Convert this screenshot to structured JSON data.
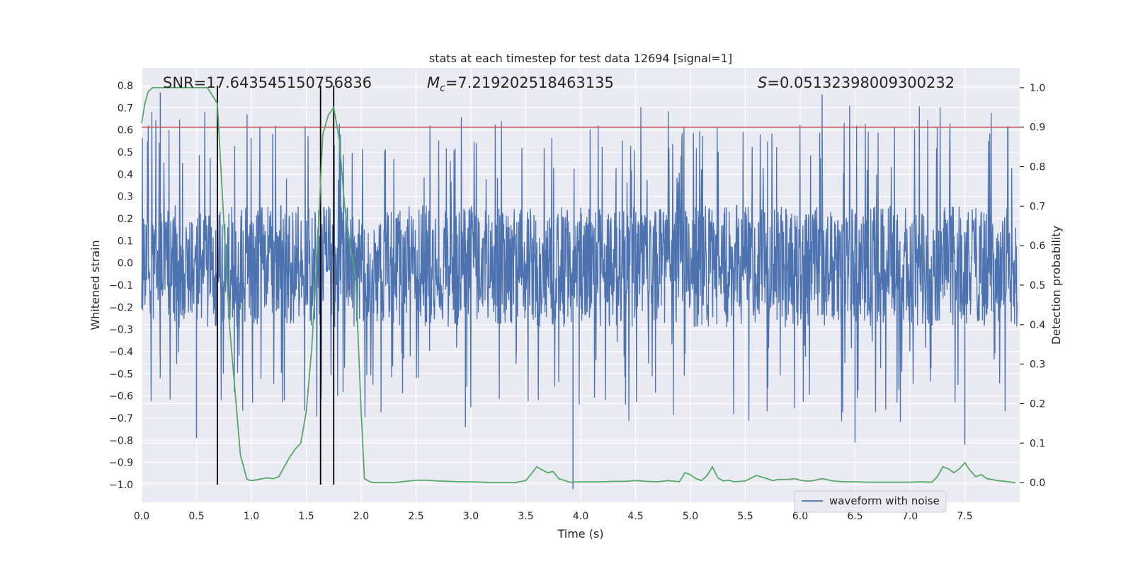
{
  "chart_data": {
    "type": "line",
    "title": "stats at each timestep for test data 12694 [signal=1]",
    "xlabel": "Time (s)",
    "ylabel": "Whitened strain",
    "y2label": "Detection probability",
    "xlim": [
      0.0,
      8.0
    ],
    "ylim": [
      -1.08,
      0.88
    ],
    "y2lim": [
      -0.05,
      1.05
    ],
    "xticks": [
      0.0,
      0.5,
      1.0,
      1.5,
      2.0,
      2.5,
      3.0,
      3.5,
      4.0,
      4.5,
      5.0,
      5.5,
      6.0,
      6.5,
      7.0,
      7.5
    ],
    "xtick_labels": [
      "0.0",
      "0.5",
      "1.0",
      "1.5",
      "2.0",
      "2.5",
      "3.0",
      "3.5",
      "4.0",
      "4.5",
      "5.0",
      "5.5",
      "6.0",
      "6.5",
      "7.0",
      "7.5"
    ],
    "yticks": [
      -1.0,
      -0.9,
      -0.8,
      -0.7,
      -0.6,
      -0.5,
      -0.4,
      -0.3,
      -0.2,
      -0.1,
      0.0,
      0.1,
      0.2,
      0.3,
      0.4,
      0.5,
      0.6,
      0.7,
      0.8
    ],
    "ytick_labels": [
      "−1.0",
      "−0.9",
      "−0.8",
      "−0.7",
      "−0.6",
      "−0.5",
      "−0.4",
      "−0.3",
      "−0.2",
      "−0.1",
      "0.0",
      "0.1",
      "0.2",
      "0.3",
      "0.4",
      "0.5",
      "0.6",
      "0.7",
      "0.8"
    ],
    "y2ticks": [
      0.0,
      0.1,
      0.2,
      0.3,
      0.4,
      0.5,
      0.6,
      0.7,
      0.8,
      0.9,
      1.0
    ],
    "y2tick_labels": [
      "0.0",
      "0.1",
      "0.2",
      "0.3",
      "0.4",
      "0.5",
      "0.6",
      "0.7",
      "0.8",
      "0.9",
      "1.0"
    ],
    "grid": true,
    "legend": {
      "placement": "lower right",
      "entries": [
        "waveform with noise"
      ]
    },
    "annotations": {
      "snr": "SNR=17.643545150756836",
      "mc_symbol": "M",
      "mc_sub": "c",
      "mc_value": "=7.219202518463135",
      "s_symbol": "S",
      "s_value": "=0.05132398009300232"
    },
    "threshold_y2": 0.9,
    "vertical_lines_x": [
      0.69,
      1.63,
      1.75
    ],
    "series": [
      {
        "name": "waveform with noise",
        "axis": "left",
        "color": "#4c72b0",
        "description_values": {
          "envelope_bulk": [
            -0.29,
            0.26
          ],
          "extreme_peaks_x": [
            0.17,
            0.5,
            1.75,
            2.95,
            3.93,
            6.2,
            6.5,
            7.5
          ],
          "extreme_peaks_y": [
            0.77,
            -0.79,
            0.78,
            -0.74,
            -1.02,
            0.76,
            -0.81,
            -0.82
          ]
        }
      },
      {
        "name": "",
        "axis": "right",
        "color": "#55a868",
        "x": [
          0.0,
          0.03,
          0.06,
          0.1,
          0.2,
          0.3,
          0.4,
          0.5,
          0.6,
          0.69,
          0.8,
          0.9,
          0.96,
          1.0,
          1.05,
          1.1,
          1.15,
          1.2,
          1.25,
          1.3,
          1.35,
          1.4,
          1.45,
          1.5,
          1.55,
          1.6,
          1.65,
          1.7,
          1.75,
          1.8,
          1.85,
          1.9,
          1.95,
          2.0,
          2.03,
          2.08,
          2.12,
          2.2,
          2.3,
          2.4,
          2.5,
          2.6,
          2.7,
          2.8,
          2.9,
          3.0,
          3.1,
          3.2,
          3.3,
          3.4,
          3.5,
          3.55,
          3.6,
          3.65,
          3.7,
          3.75,
          3.8,
          3.9,
          4.0,
          4.1,
          4.2,
          4.3,
          4.4,
          4.5,
          4.6,
          4.7,
          4.8,
          4.9,
          4.95,
          5.0,
          5.05,
          5.1,
          5.15,
          5.2,
          5.25,
          5.3,
          5.35,
          5.4,
          5.5,
          5.6,
          5.7,
          5.75,
          5.8,
          5.9,
          5.95,
          6.0,
          6.05,
          6.1,
          6.2,
          6.3,
          6.4,
          6.5,
          6.6,
          6.7,
          6.8,
          6.9,
          7.0,
          7.1,
          7.2,
          7.25,
          7.3,
          7.35,
          7.4,
          7.45,
          7.5,
          7.55,
          7.6,
          7.65,
          7.7,
          7.8,
          7.9,
          7.96
        ],
        "y": [
          0.91,
          0.96,
          0.99,
          1.0,
          1.0,
          1.0,
          1.0,
          1.0,
          1.0,
          0.96,
          0.4,
          0.07,
          0.008,
          0.005,
          0.007,
          0.01,
          0.012,
          0.01,
          0.015,
          0.04,
          0.065,
          0.085,
          0.1,
          0.18,
          0.34,
          0.58,
          0.88,
          0.93,
          0.95,
          0.87,
          0.7,
          0.6,
          0.52,
          0.18,
          0.01,
          0.002,
          0.0,
          0.0,
          0.0,
          0.003,
          0.006,
          0.006,
          0.004,
          0.003,
          0.002,
          0.002,
          0.001,
          0.0,
          0.0,
          0.0,
          0.005,
          0.022,
          0.04,
          0.032,
          0.025,
          0.028,
          0.01,
          0.001,
          0.002,
          0.002,
          0.002,
          0.003,
          0.003,
          0.005,
          0.003,
          0.002,
          0.005,
          0.002,
          0.025,
          0.02,
          0.01,
          0.005,
          0.017,
          0.04,
          0.012,
          0.004,
          0.006,
          0.002,
          0.004,
          0.018,
          0.01,
          0.005,
          0.008,
          0.008,
          0.01,
          0.006,
          0.004,
          0.004,
          0.01,
          0.004,
          0.002,
          0.002,
          0.001,
          0.001,
          0.001,
          0.001,
          0.001,
          0.002,
          0.001,
          0.015,
          0.04,
          0.035,
          0.025,
          0.035,
          0.05,
          0.03,
          0.015,
          0.02,
          0.01,
          0.005,
          0.002,
          0.0
        ]
      }
    ]
  }
}
